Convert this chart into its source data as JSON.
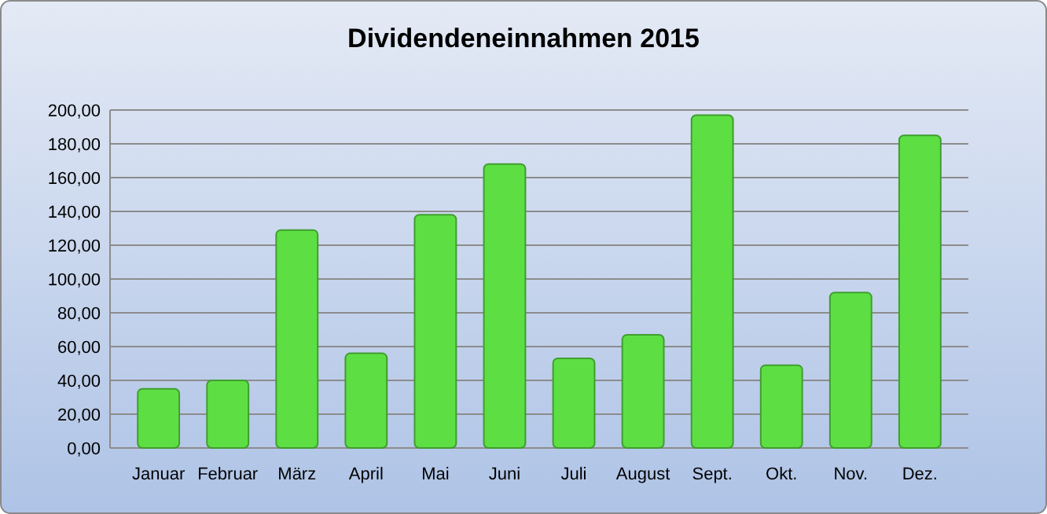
{
  "chart_data": {
    "type": "bar",
    "title": "Dividendeneinnahmen 2015",
    "categories": [
      "Januar",
      "Februar",
      "März",
      "April",
      "Mai",
      "Juni",
      "Juli",
      "August",
      "Sept.",
      "Okt.",
      "Nov.",
      "Dez."
    ],
    "values": [
      35,
      40,
      129,
      56,
      138,
      168,
      53,
      67,
      197,
      49,
      92,
      185
    ],
    "color": "#5ddf44",
    "ylim": [
      0,
      200
    ],
    "yticks": [
      {
        "value": 0,
        "label": "0,00"
      },
      {
        "value": 20,
        "label": "20,00"
      },
      {
        "value": 40,
        "label": "40,00"
      },
      {
        "value": 60,
        "label": "60,00"
      },
      {
        "value": 80,
        "label": "80,00"
      },
      {
        "value": 100,
        "label": "100,00"
      },
      {
        "value": 120,
        "label": "120,00"
      },
      {
        "value": 140,
        "label": "140,00"
      },
      {
        "value": 160,
        "label": "160,00"
      },
      {
        "value": 180,
        "label": "180,00"
      },
      {
        "value": 200,
        "label": "200,00"
      }
    ],
    "grid": true
  }
}
